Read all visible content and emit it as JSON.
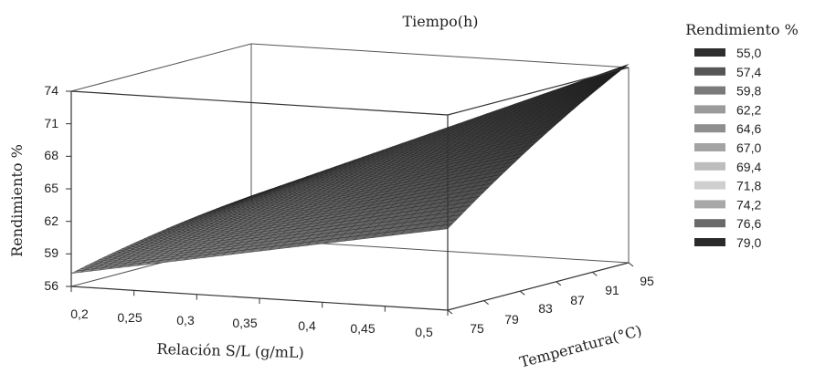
{
  "chart_data": {
    "type": "surface",
    "title": "Tiempo(h)",
    "xlabel": "Relación S/L (g/mL)",
    "ylabel": "Temperatura(°C)",
    "zlabel": "Rendimiento %",
    "x_ticks": [
      "0,2",
      "0,25",
      "0,3",
      "0,35",
      "0,4",
      "0,45",
      "0,5"
    ],
    "y_ticks": [
      "75",
      "79",
      "83",
      "87",
      "91",
      "95"
    ],
    "z_ticks": [
      "56",
      "59",
      "62",
      "65",
      "68",
      "71",
      "74"
    ],
    "x_range": [
      0.2,
      0.5
    ],
    "y_range": [
      75,
      95
    ],
    "z_range": [
      56,
      74
    ],
    "surface_corners": [
      {
        "x": 0.2,
        "y": 75,
        "z": 57.2
      },
      {
        "x": 0.5,
        "y": 75,
        "z": 63.5
      },
      {
        "x": 0.2,
        "y": 95,
        "z": 60.0
      },
      {
        "x": 0.5,
        "y": 95,
        "z": 74.3
      }
    ],
    "legend": {
      "title": "Rendimiento %",
      "placement": "right",
      "items": [
        {
          "label": "55,0",
          "color": "#2e2e2e"
        },
        {
          "label": "57,4",
          "color": "#555555"
        },
        {
          "label": "59,8",
          "color": "#7a7a7a"
        },
        {
          "label": "62,2",
          "color": "#9b9b9b"
        },
        {
          "label": "64,6",
          "color": "#8e8e8e"
        },
        {
          "label": "67,0",
          "color": "#a3a3a3"
        },
        {
          "label": "69,4",
          "color": "#bdbdbd"
        },
        {
          "label": "71,8",
          "color": "#cfcfcf"
        },
        {
          "label": "74,2",
          "color": "#a8a8a8"
        },
        {
          "label": "76,6",
          "color": "#6a6a6a"
        },
        {
          "label": "79,0",
          "color": "#2a2a2a"
        }
      ]
    }
  }
}
